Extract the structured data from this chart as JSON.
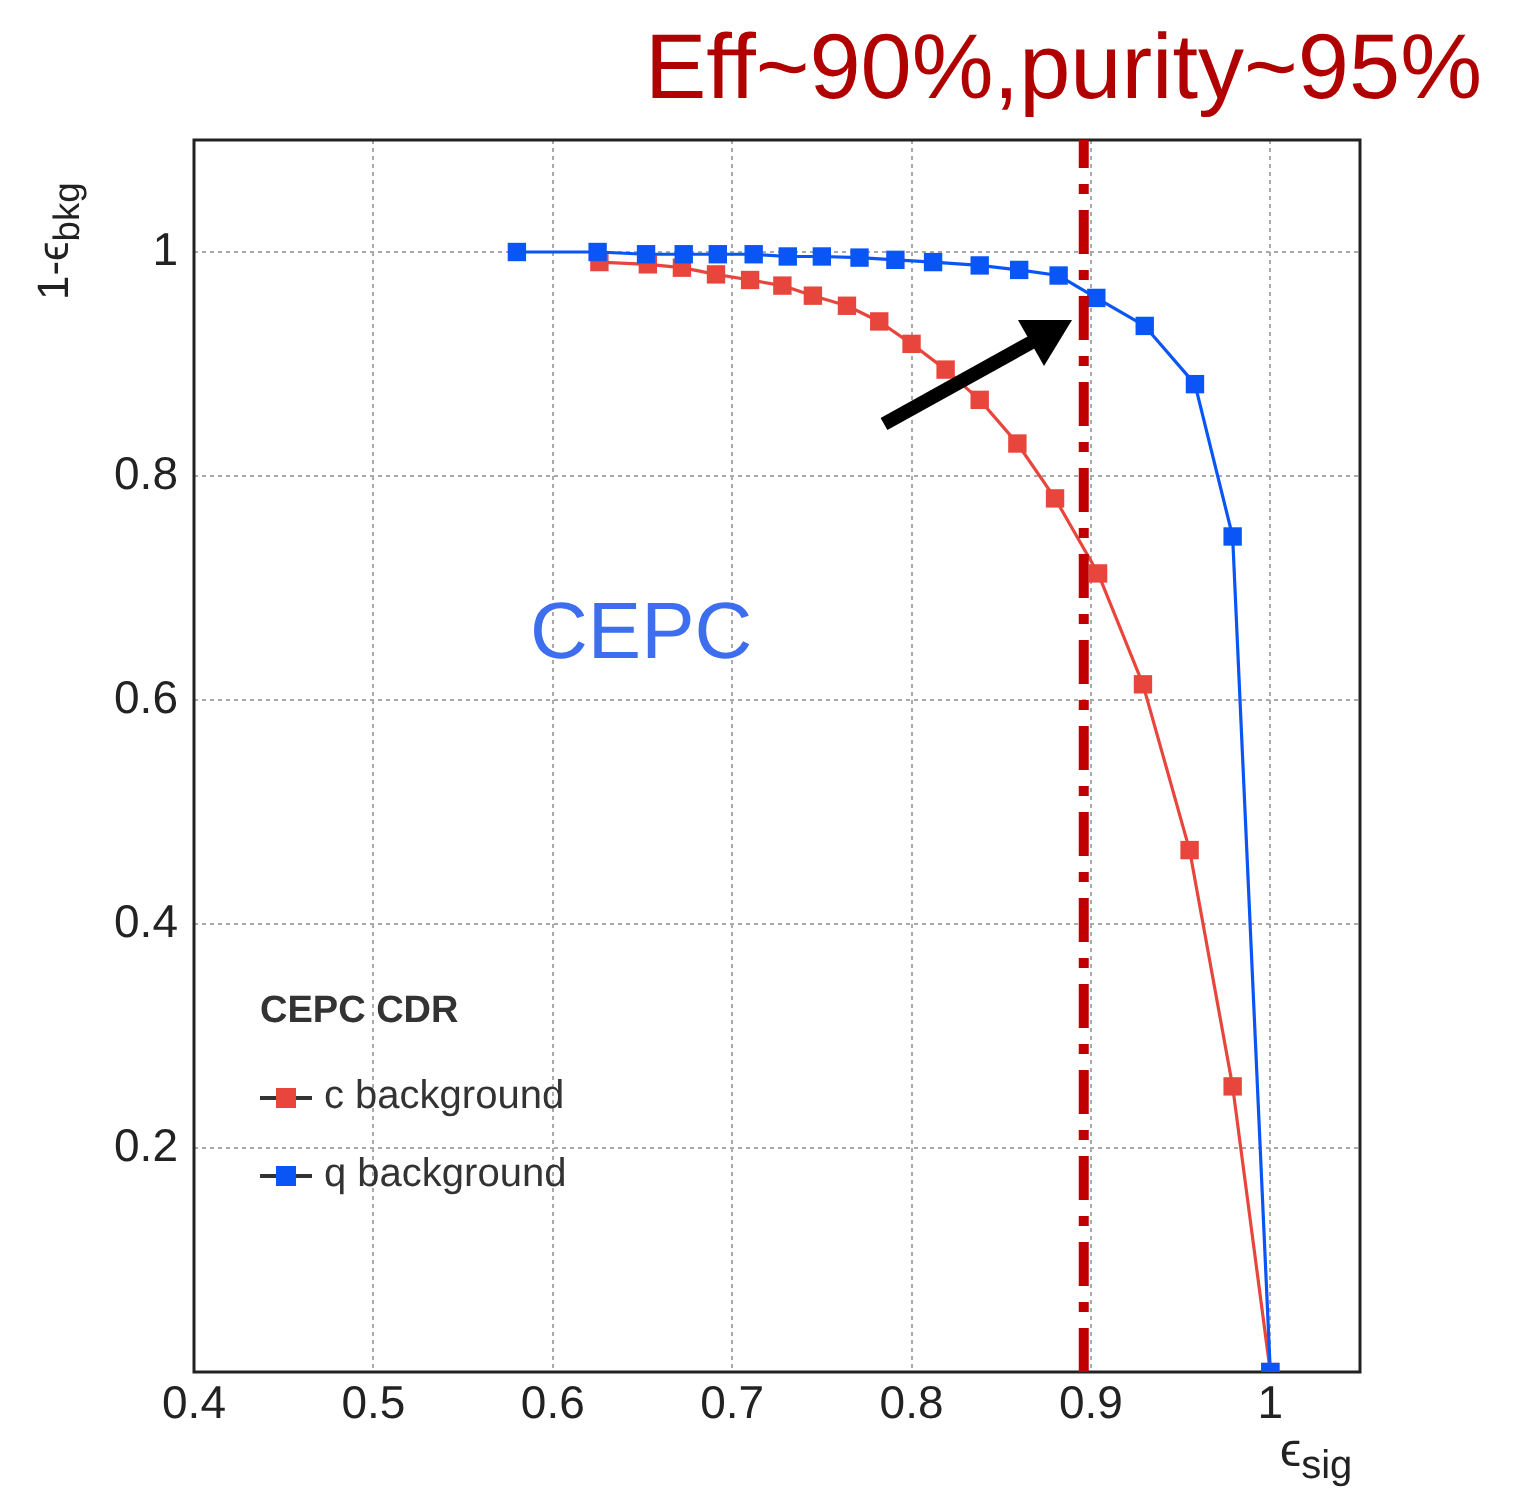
{
  "chart_data": {
    "type": "line",
    "title": "Eff~90%,purity~95%",
    "xlabel": "ϵ$_{sig}$",
    "ylabel": "1-ϵ$_{bkg}$",
    "legend_title": "CEPC CDR",
    "annotations": [
      "CEPC"
    ],
    "xlim": [
      0.4,
      1.05
    ],
    "ylim": [
      0,
      1.1
    ],
    "xticks": [
      0.4,
      0.5,
      0.6,
      0.7,
      0.8,
      0.9,
      1
    ],
    "yticks": [
      0.2,
      0.4,
      0.6,
      0.8,
      1
    ],
    "grid": true,
    "legend": "bottom left",
    "marker": "square",
    "line_style": "solid",
    "ref_lines": [
      {
        "axis": "x",
        "value": 0.896,
        "color": "#c00000",
        "line_style": "dashdot"
      }
    ],
    "series": [
      {
        "name": "c background",
        "color": "#e8453c",
        "x": [
          0.626,
          0.653,
          0.672,
          0.691,
          0.71,
          0.728,
          0.745,
          0.764,
          0.782,
          0.8,
          0.819,
          0.838,
          0.859,
          0.88,
          0.904,
          0.929,
          0.955,
          0.979,
          1.0
        ],
        "values": [
          0.991,
          0.989,
          0.986,
          0.98,
          0.975,
          0.97,
          0.961,
          0.952,
          0.938,
          0.918,
          0.895,
          0.868,
          0.829,
          0.78,
          0.713,
          0.614,
          0.466,
          0.255,
          0
        ]
      },
      {
        "name": "q background",
        "color": "#0a55f5",
        "x": [
          0.58,
          0.625,
          0.652,
          0.673,
          0.692,
          0.712,
          0.731,
          0.75,
          0.771,
          0.791,
          0.812,
          0.838,
          0.86,
          0.882,
          0.903,
          0.93,
          0.958,
          0.979,
          1.0
        ],
        "values": [
          1.0,
          1.0,
          0.998,
          0.998,
          0.998,
          0.998,
          0.996,
          0.996,
          0.995,
          0.993,
          0.991,
          0.988,
          0.984,
          0.979,
          0.959,
          0.934,
          0.882,
          0.746,
          0
        ]
      }
    ]
  }
}
